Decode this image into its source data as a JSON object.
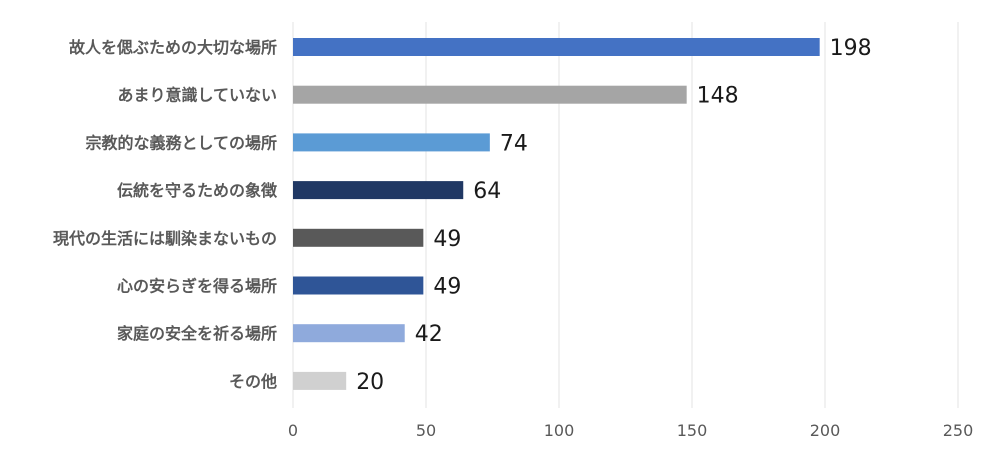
{
  "chart_data": {
    "type": "bar",
    "orientation": "horizontal",
    "categories": [
      "故人を偲ぶための大切な場所",
      "あまり意識していない",
      "宗教的な義務としての場所",
      "伝統を守るための象徴",
      "現代の生活には馴染まないもの",
      "心の安らぎを得る場所",
      "家庭の安全を祈る場所",
      "その他"
    ],
    "values": [
      198,
      148,
      74,
      64,
      49,
      49,
      42,
      20
    ],
    "colors": [
      "#4472c4",
      "#a5a5a5",
      "#5b9bd5",
      "#203864",
      "#595959",
      "#2f5597",
      "#8faadc",
      "#d0d0d0"
    ],
    "xlim": [
      0,
      250
    ],
    "xticks": [
      0,
      50,
      100,
      150,
      200,
      250
    ],
    "grid": true,
    "data_labels": true,
    "legend": "none",
    "title": "",
    "xlabel": "",
    "ylabel": ""
  }
}
